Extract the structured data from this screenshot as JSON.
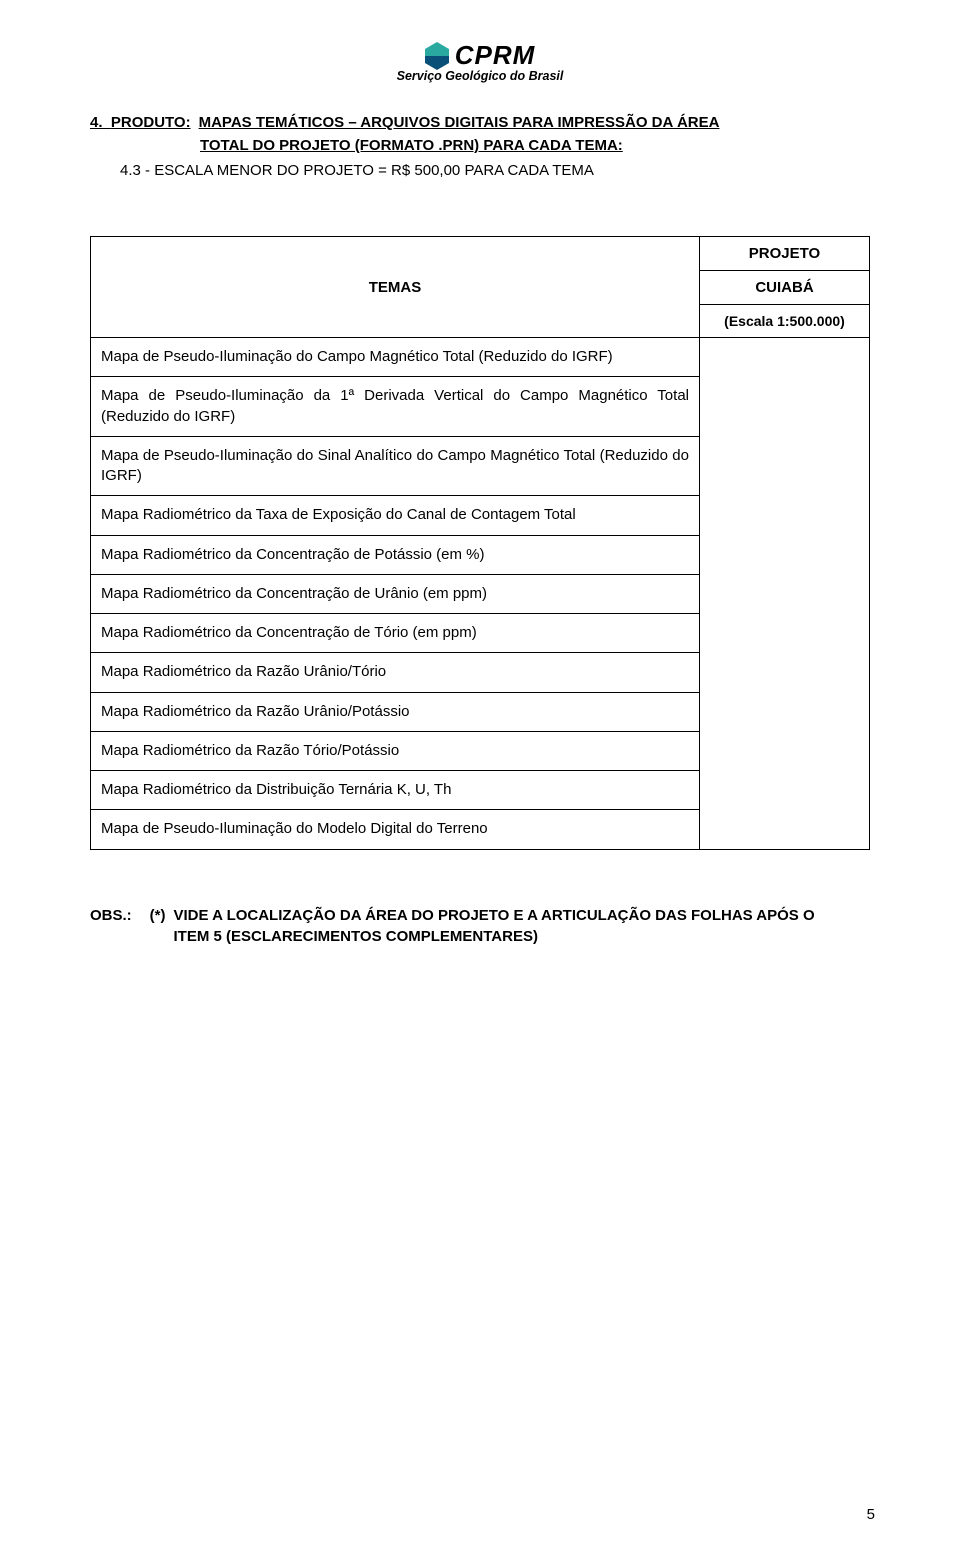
{
  "logo": {
    "brand": "CPRM",
    "tagline": "Serviço Geológico do Brasil",
    "hex_top_color": "#2aa9a0",
    "hex_bottom_color": "#0a4f78"
  },
  "heading": {
    "number": "4.",
    "label": "PRODUTO:",
    "title_line1": "MAPAS TEMÁTICOS – ARQUIVOS DIGITAIS PARA IMPRESSÃO DA ÁREA",
    "title_line2": "TOTAL DO PROJETO (FORMATO .PRN)  PARA CADA TEMA:",
    "sub_number": "4.3 -",
    "sub_text": "ESCALA MENOR DO PROJETO = R$  500,00  PARA CADA TEMA"
  },
  "table": {
    "temas_label": "TEMAS",
    "projeto_label": "PROJETO",
    "projeto_name": "CUIABÁ",
    "projeto_scale": "(Escala 1:500.000)",
    "rows": [
      "Mapa de Pseudo-Iluminação do Campo Magnético Total (Reduzido do IGRF)",
      "Mapa de Pseudo-Iluminação da 1ª Derivada Vertical do Campo Magnético Total (Reduzido do IGRF)",
      "Mapa de Pseudo-Iluminação do Sinal Analítico do Campo Magnético Total (Reduzido do IGRF)",
      "Mapa Radiométrico da Taxa de Exposição do Canal de Contagem Total",
      "Mapa Radiométrico da Concentração de Potássio (em %)",
      "Mapa Radiométrico da Concentração de Urânio (em ppm)",
      "Mapa Radiométrico da Concentração de Tório (em ppm)",
      "Mapa Radiométrico da Razão Urânio/Tório",
      "Mapa Radiométrico da Razão Urânio/Potássio",
      "Mapa Radiométrico da Razão Tório/Potássio",
      "Mapa Radiométrico da Distribuição Ternária K, U, Th",
      "Mapa de Pseudo-Iluminação do Modelo Digital do Terreno"
    ]
  },
  "obs": {
    "label": "OBS.:",
    "star": "(*)",
    "line1": "VIDE A LOCALIZAÇÃO DA ÁREA DO PROJETO E A ARTICULAÇÃO DAS FOLHAS  APÓS O",
    "line2": "ITEM 5 (ESCLARECIMENTOS COMPLEMENTARES)"
  },
  "page_number": "5"
}
